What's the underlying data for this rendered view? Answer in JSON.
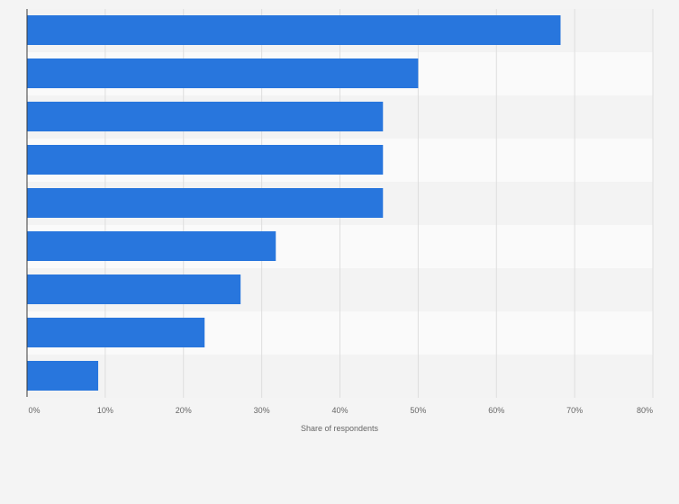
{
  "chart_data": {
    "type": "bar",
    "orientation": "horizontal",
    "categories": [
      "",
      "",
      "",
      "",
      "",
      "",
      "",
      "",
      ""
    ],
    "values": [
      68.2,
      50.0,
      45.5,
      45.5,
      45.5,
      31.8,
      27.3,
      22.7,
      9.1
    ],
    "xlabel": "Share of respondents",
    "ylabel": "",
    "xlim": [
      0,
      80
    ],
    "x_ticks": [
      "0%",
      "10%",
      "20%",
      "30%",
      "40%",
      "50%",
      "60%",
      "70%",
      "80%"
    ],
    "grid": true,
    "legend": "none",
    "colors": {
      "bar": "#2876dd",
      "background": "#f4f4f4",
      "band_light": "#fafafa",
      "band_dark": "#f3f3f3",
      "gridline": "#dedede",
      "axis": "#3a3a3a",
      "tick_text": "#666666"
    }
  }
}
